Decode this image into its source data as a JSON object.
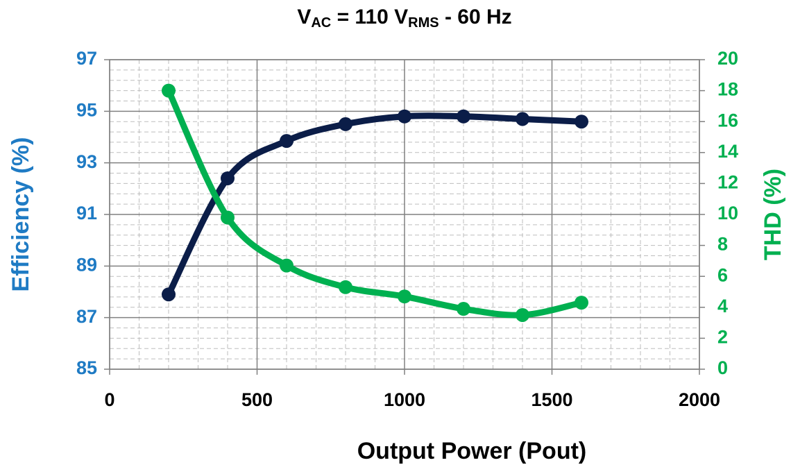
{
  "chart_data": {
    "type": "line",
    "title": [
      {
        "text": "V"
      },
      {
        "text": "AC",
        "sub": true
      },
      {
        "text": " = 110 V"
      },
      {
        "text": "RMS",
        "sub": true
      },
      {
        "text": " - 60 Hz"
      }
    ],
    "x_label": "Output Power (Pout)",
    "y_label": "Efficiency (%)",
    "y2_label": "THD (%)",
    "x": [
      200,
      400,
      600,
      800,
      1000,
      1200,
      1400,
      1600
    ],
    "series": [
      {
        "color": "#0b1d48",
        "values": [
          87.9,
          92.4,
          93.85,
          94.5,
          94.8,
          94.8,
          94.7,
          94.6
        ]
      },
      {
        "color": "#00b050",
        "axis": "y2",
        "values": [
          18,
          9.8,
          6.7,
          5.3,
          4.7,
          3.9,
          3.5,
          4.3
        ]
      }
    ],
    "xlim": [
      0,
      2000
    ],
    "xticks": [
      0,
      500,
      1000,
      1500,
      2000
    ],
    "ylim": [
      85,
      97
    ],
    "yticks": [
      85,
      87,
      89,
      91,
      93,
      95,
      97
    ],
    "y2lim": [
      0,
      20
    ],
    "y2ticks": [
      0,
      2,
      4,
      6,
      8,
      10,
      12,
      14,
      16,
      18,
      20
    ],
    "y_color": "#1f7bc4",
    "y2_color": "#00b050",
    "grid": true,
    "x_minor_divisions": 5,
    "y_minor_divisions": 5,
    "smooth": true
  }
}
